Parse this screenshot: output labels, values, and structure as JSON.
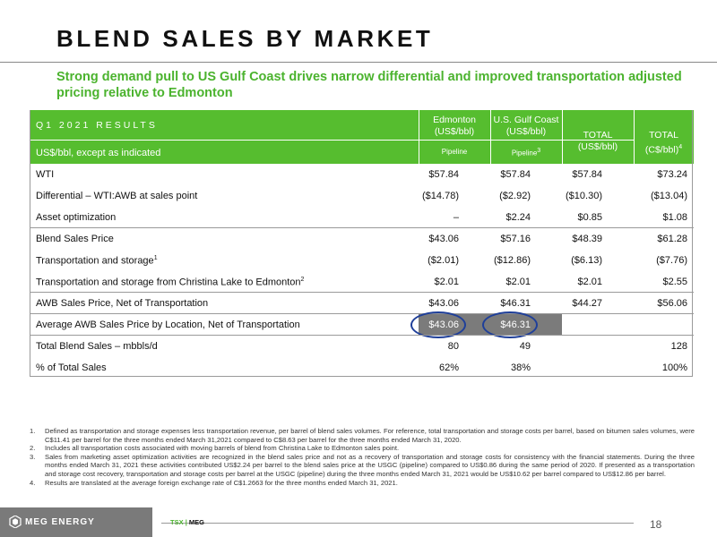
{
  "title": "BLEND SALES BY MARKET",
  "subtitle": "Strong demand pull to US Gulf Coast drives narrow differential and improved transportation adjusted pricing relative to Edmonton",
  "table": {
    "header_label": "Q1 2021 RESULTS",
    "units_label": "US$/bbl, except as indicated",
    "columns": [
      {
        "line1": "Edmonton",
        "line2": "(US$/bbl)",
        "sub": "Pipeline",
        "sub_sup": ""
      },
      {
        "line1": "U.S. Gulf Coast",
        "line2": "(US$/bbl)",
        "sub": "Pipeline",
        "sub_sup": "3"
      },
      {
        "line1": "TOTAL",
        "line2": "(US$/bbl)",
        "sub": "",
        "sub_sup": ""
      },
      {
        "line1": "TOTAL",
        "line2": "(C$/bbl)",
        "sub": "",
        "sub_sup": "4"
      }
    ],
    "rows": [
      {
        "label": "WTI",
        "sup": "",
        "values": [
          "$57.84",
          "$57.84",
          "$57.84",
          "$73.24"
        ]
      },
      {
        "label": "Differential – WTI:AWB at sales point",
        "sup": "",
        "values": [
          "($14.78)",
          "($2.92)",
          "($10.30)",
          "($13.04)"
        ]
      },
      {
        "label": "Asset optimization",
        "sup": "",
        "values": [
          "–",
          "$2.24",
          "$0.85",
          "$1.08"
        ]
      },
      {
        "label": "Blend Sales Price",
        "sup": "",
        "values": [
          "$43.06",
          "$57.16",
          "$48.39",
          "$61.28"
        ]
      },
      {
        "label": "Transportation and storage",
        "sup": "1",
        "values": [
          "($2.01)",
          "($12.86)",
          "($6.13)",
          "($7.76)"
        ]
      },
      {
        "label": "Transportation and storage from Christina Lake to Edmonton",
        "sup": "2",
        "values": [
          "$2.01",
          "$2.01",
          "$2.01",
          "$2.55"
        ]
      },
      {
        "label": "AWB Sales Price, Net of Transportation",
        "sup": "",
        "values": [
          "$43.06",
          "$46.31",
          "$44.27",
          "$56.06"
        ]
      },
      {
        "label": "Average AWB Sales Price by Location, Net of Transportation",
        "sup": "",
        "values": [
          "$43.06",
          "$46.31",
          "",
          ""
        ]
      },
      {
        "label": "Total Blend Sales – mbbls/d",
        "sup": "",
        "values": [
          "80",
          "49",
          "",
          "128"
        ]
      },
      {
        "label": "% of Total Sales",
        "sup": "",
        "values": [
          "62%",
          "38%",
          "",
          "100%"
        ]
      }
    ]
  },
  "footnotes": [
    {
      "num": "1.",
      "text": "Defined as transportation and storage expenses less transportation revenue, per barrel of blend sales volumes. For reference, total transportation and storage costs per barrel, based on bitumen sales volumes, were C$11.41 per barrel for the three months ended March 31,2021 compared to C$8.63 per barrel for the three months ended March 31, 2020."
    },
    {
      "num": "2.",
      "text": "Includes all transportation costs associated with moving barrels of blend from Christina Lake to Edmonton sales point."
    },
    {
      "num": "3.",
      "text": "Sales from marketing asset optimization activities are recognized in the blend sales price and not as a recovery of transportation and storage costs for consistency with the financial statements. During the three months ended March 31, 2021 these activities contributed US$2.24 per barrel to the blend sales price at the USGC (pipeline) compared to US$0.86 during the same period of 2020. If presented as a transportation and storage cost recovery, transportation and storage costs per barrel at the USGC (pipeline) during the three months ended March 31, 2021 would be US$10.62 per barrel compared to US$12.86 per barrel."
    },
    {
      "num": "4.",
      "text": "Results are translated at the average foreign exchange rate of C$1.2663 for the three months ended March 31, 2021."
    }
  ],
  "footer": {
    "logo_text": "MEG ENERGY",
    "ticker_tsx": "TSX",
    "ticker_sep": "|",
    "ticker_meg": "MEG",
    "page_number": "18"
  },
  "colors": {
    "accent_green": "#56bd2f",
    "highlight_gray": "#7b7b7b",
    "ellipse_blue": "#1f3f99"
  }
}
